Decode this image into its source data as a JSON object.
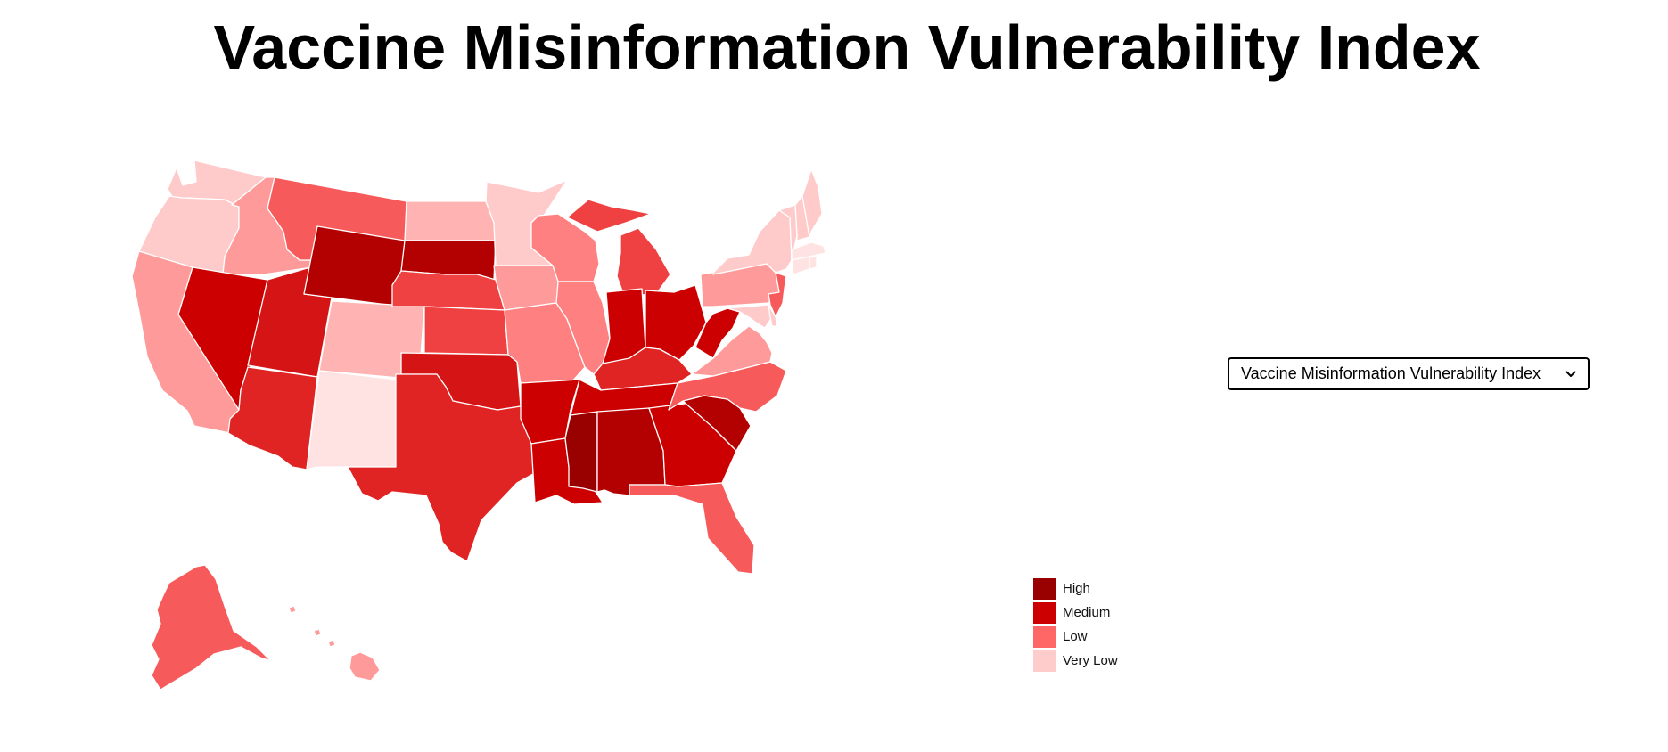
{
  "page": {
    "title": "Vaccine Misinformation Vulnerability Index"
  },
  "metric_select": {
    "selected": "Vaccine Misinformation Vulnerability Index",
    "icon": "chevron-down-icon"
  },
  "legend": {
    "items": [
      {
        "label": "High",
        "color": "#990000"
      },
      {
        "label": "Medium",
        "color": "#cc0000"
      },
      {
        "label": "Low",
        "color": "#ff6666"
      },
      {
        "label": "Very Low",
        "color": "#ffcccc"
      }
    ]
  },
  "map": {
    "color_scale": {
      "v1": "#ffe3e3",
      "v2": "#ffcaca",
      "v3": "#ffb3b3",
      "v4": "#ff9a9a",
      "v5": "#ff8080",
      "v6": "#f65a5a",
      "v7": "#ef4141",
      "v8": "#e02424",
      "v9": "#d51515",
      "v10": "#cc0000",
      "v11": "#b30000",
      "v12": "#990000"
    },
    "states": [
      {
        "code": "WA",
        "level": "v2"
      },
      {
        "code": "OR",
        "level": "v2"
      },
      {
        "code": "CA",
        "level": "v4"
      },
      {
        "code": "ID",
        "level": "v4"
      },
      {
        "code": "NV",
        "level": "v10"
      },
      {
        "code": "UT",
        "level": "v9"
      },
      {
        "code": "AZ",
        "level": "v8"
      },
      {
        "code": "MT",
        "level": "v6"
      },
      {
        "code": "WY",
        "level": "v11"
      },
      {
        "code": "CO",
        "level": "v3"
      },
      {
        "code": "NM",
        "level": "v1"
      },
      {
        "code": "ND",
        "level": "v3"
      },
      {
        "code": "SD",
        "level": "v11"
      },
      {
        "code": "NE",
        "level": "v7"
      },
      {
        "code": "KS",
        "level": "v7"
      },
      {
        "code": "OK",
        "level": "v9"
      },
      {
        "code": "TX",
        "level": "v8"
      },
      {
        "code": "MN",
        "level": "v2"
      },
      {
        "code": "IA",
        "level": "v4"
      },
      {
        "code": "MO",
        "level": "v5"
      },
      {
        "code": "AR",
        "level": "v10"
      },
      {
        "code": "LA",
        "level": "v10"
      },
      {
        "code": "WI",
        "level": "v5"
      },
      {
        "code": "IL",
        "level": "v5"
      },
      {
        "code": "MI",
        "level": "v7"
      },
      {
        "code": "IN",
        "level": "v10"
      },
      {
        "code": "OH",
        "level": "v10"
      },
      {
        "code": "KY",
        "level": "v8"
      },
      {
        "code": "TN",
        "level": "v10"
      },
      {
        "code": "MS",
        "level": "v12"
      },
      {
        "code": "AL",
        "level": "v11"
      },
      {
        "code": "GA",
        "level": "v10"
      },
      {
        "code": "FL",
        "level": "v6"
      },
      {
        "code": "SC",
        "level": "v11"
      },
      {
        "code": "NC",
        "level": "v6"
      },
      {
        "code": "VA",
        "level": "v4"
      },
      {
        "code": "WV",
        "level": "v10"
      },
      {
        "code": "PA",
        "level": "v4"
      },
      {
        "code": "NY",
        "level": "v2"
      },
      {
        "code": "NJ",
        "level": "v6"
      },
      {
        "code": "MD",
        "level": "v2"
      },
      {
        "code": "DE",
        "level": "v2"
      },
      {
        "code": "VT",
        "level": "v2"
      },
      {
        "code": "NH",
        "level": "v2"
      },
      {
        "code": "ME",
        "level": "v2"
      },
      {
        "code": "MA",
        "level": "v1"
      },
      {
        "code": "CT",
        "level": "v1"
      },
      {
        "code": "RI",
        "level": "v1"
      },
      {
        "code": "AK",
        "level": "v6"
      },
      {
        "code": "HI",
        "level": "v4"
      }
    ]
  }
}
